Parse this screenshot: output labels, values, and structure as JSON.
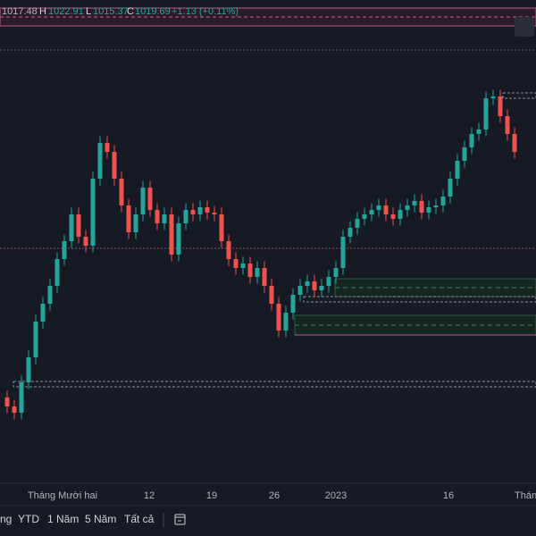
{
  "chart_data": {
    "type": "candlestick",
    "legend": [
      "1017.48",
      "H",
      "1022.91",
      "L",
      "1015.37",
      "C",
      "1019.69",
      "+1.13 (+0.11%)"
    ],
    "x_labels": [
      "Tháng Mười hai",
      "12",
      "19",
      "26",
      "2023",
      "16",
      "Tháng"
    ],
    "up_color": "#26a69a",
    "down_color": "#ef5350",
    "ylim": [
      854,
      1070
    ],
    "open": [
      892,
      888,
      885.2,
      898.8,
      910,
      926,
      934,
      942,
      954,
      962,
      974,
      964,
      960,
      990,
      1006,
      1002,
      990,
      978,
      966,
      974,
      986,
      976,
      970,
      974,
      956,
      970,
      976,
      974,
      977.2,
      974.8,
      974,
      962,
      954,
      950,
      952,
      946,
      950,
      942,
      934,
      922,
      930,
      938,
      942,
      944,
      940,
      942,
      946,
      950,
      964,
      968,
      972,
      974,
      976,
      978,
      974,
      972,
      976,
      978,
      980,
      974.8,
      977.2,
      978,
      982,
      990,
      998,
      1004,
      1010,
      1012,
      1026,
      1026.8,
      1018,
      1010
    ],
    "high": [
      895,
      891,
      901.8,
      913,
      929,
      937,
      945,
      957,
      965,
      977,
      977,
      967,
      993,
      1009,
      1009,
      1005,
      993,
      981,
      977,
      989,
      989,
      979,
      977,
      977,
      973,
      979,
      979,
      980.2,
      980.2,
      977.8,
      977,
      965,
      957,
      955,
      955,
      953,
      953,
      945,
      937,
      933,
      941,
      945,
      947,
      947,
      945,
      949,
      953,
      967,
      971,
      975,
      977,
      979,
      981,
      981,
      977,
      979,
      981,
      983,
      983,
      980.2,
      981,
      985,
      993,
      1001,
      1007,
      1013,
      1015,
      1029,
      1029.8,
      1029.8,
      1021,
      1013
    ],
    "low": [
      885,
      882.2,
      882.2,
      895.8,
      907,
      923,
      931,
      939,
      951,
      959,
      961,
      957,
      957,
      987,
      999,
      987,
      975,
      963,
      963,
      971,
      973,
      967,
      967,
      953,
      953,
      967,
      971,
      971,
      971.8,
      971,
      959,
      951,
      947,
      947,
      943,
      943,
      939,
      931,
      919,
      919,
      927,
      935,
      939,
      937,
      937,
      939,
      943,
      947,
      961,
      965,
      969,
      971,
      973,
      971,
      969,
      969,
      973,
      975,
      971.8,
      971.8,
      974.2,
      975,
      979,
      987,
      995,
      1001,
      1007,
      1009,
      1023,
      1015,
      1007,
      999
    ],
    "close": [
      888,
      885.2,
      898.8,
      910,
      926,
      934,
      942,
      954,
      962,
      974,
      964,
      960,
      990,
      1006,
      1002,
      990,
      978,
      966,
      974,
      986,
      976,
      970,
      974,
      956,
      970,
      976,
      974,
      977.2,
      974.8,
      974,
      962,
      954,
      950,
      952,
      946,
      950,
      942,
      934,
      922,
      930,
      938,
      942,
      944,
      940,
      942,
      946,
      950,
      964,
      968,
      972,
      974,
      976,
      978,
      974,
      972,
      976,
      978,
      980,
      974.8,
      977.2,
      978,
      982,
      990,
      998,
      1004,
      1010,
      1012,
      1026,
      1026.8,
      1018,
      1010,
      1002
    ]
  },
  "toolbar": {
    "items": [
      "ng",
      "YTD",
      "1 Năm",
      "5 Năm",
      "Tất cả"
    ]
  }
}
